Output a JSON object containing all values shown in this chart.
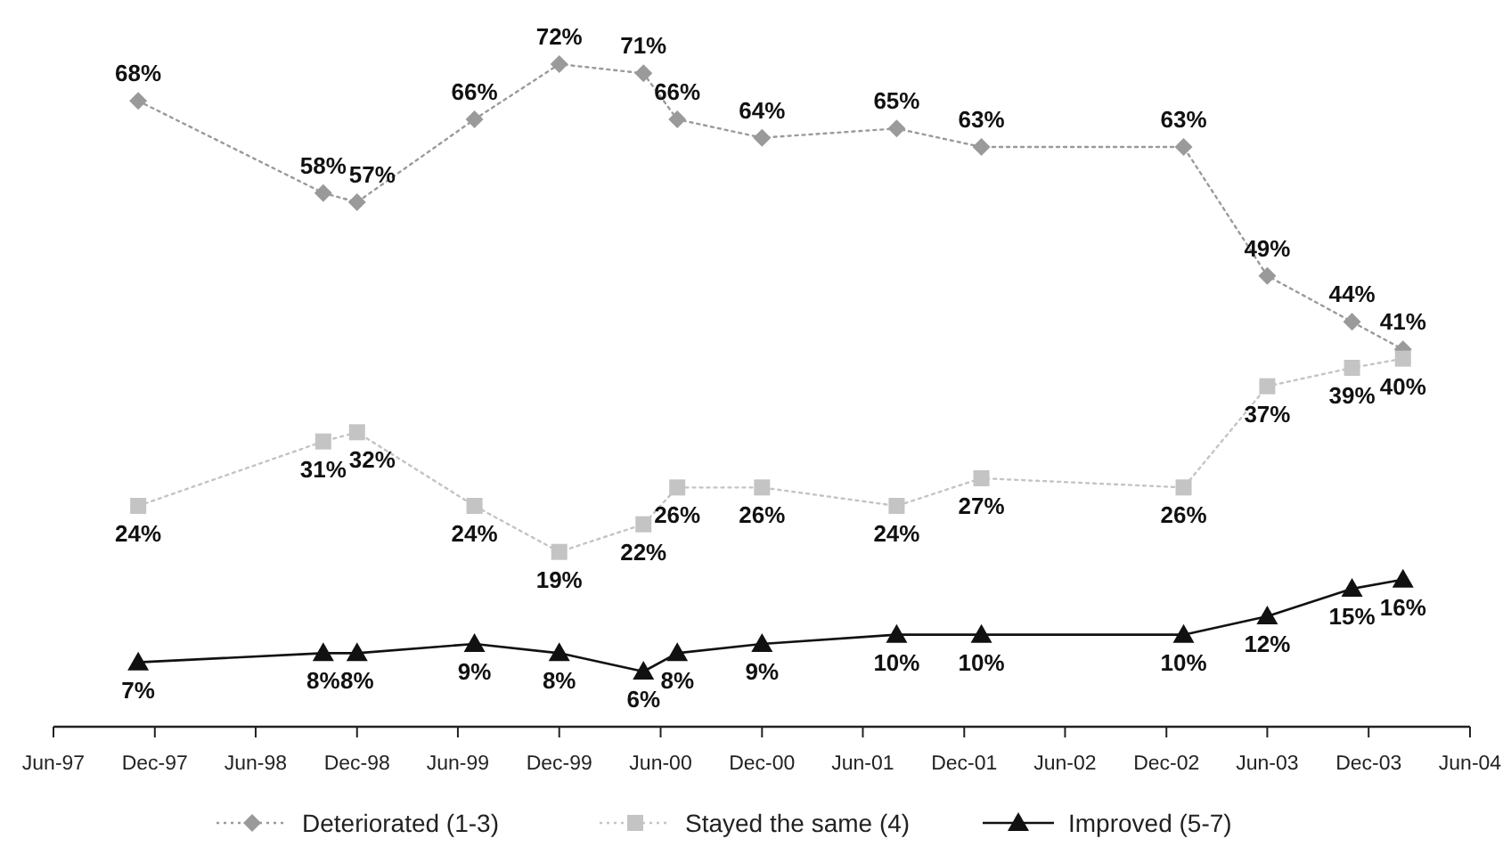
{
  "chart_data": {
    "type": "line",
    "x": [
      "1997-11",
      "1998-10",
      "1998-12",
      "1999-07",
      "1999-12",
      "2000-05",
      "2000-07",
      "2000-12",
      "2001-08",
      "2002-01",
      "2003-01",
      "2003-06",
      "2003-11",
      "2004-02"
    ],
    "series": [
      {
        "name": "Deteriorated (1-3)",
        "color": "#9a9a9a",
        "marker": "diamond",
        "line_style": "dotted",
        "values": [
          68,
          58,
          57,
          66,
          72,
          71,
          66,
          64,
          65,
          63,
          63,
          49,
          44,
          41
        ],
        "value_labels": [
          "68%",
          "58%",
          "57%",
          "66%",
          "72%",
          "71%",
          "66%",
          "64%",
          "65%",
          "63%",
          "63%",
          "49%",
          "44%",
          "41%"
        ]
      },
      {
        "name": "Stayed the same (4)",
        "color": "#c4c4c4",
        "marker": "square",
        "line_style": "dotted",
        "values": [
          24,
          31,
          32,
          24,
          19,
          22,
          26,
          26,
          24,
          27,
          26,
          37,
          39,
          40
        ],
        "value_labels": [
          "24%",
          "31%",
          "32%",
          "24%",
          "19%",
          "22%",
          "26%",
          "26%",
          "24%",
          "27%",
          "26%",
          "37%",
          "39%",
          "40%"
        ]
      },
      {
        "name": "Improved (5-7)",
        "color": "#111111",
        "marker": "triangle",
        "line_style": "solid",
        "values": [
          7,
          8,
          8,
          9,
          8,
          6,
          8,
          9,
          10,
          10,
          10,
          12,
          15,
          16
        ],
        "value_labels": [
          "7%",
          "8%",
          "8%",
          "9%",
          "8%",
          "6%",
          "8%",
          "9%",
          "10%",
          "10%",
          "10%",
          "12%",
          "15%",
          "16%"
        ]
      }
    ],
    "xlim": [
      "1997-06",
      "2004-06"
    ],
    "xticks": [
      {
        "value": "1997-06",
        "label": "Jun-97"
      },
      {
        "value": "1997-12",
        "label": "Dec-97"
      },
      {
        "value": "1998-06",
        "label": "Jun-98"
      },
      {
        "value": "1998-12",
        "label": "Dec-98"
      },
      {
        "value": "1999-06",
        "label": "Jun-99"
      },
      {
        "value": "1999-12",
        "label": "Dec-99"
      },
      {
        "value": "2000-06",
        "label": "Jun-00"
      },
      {
        "value": "2000-12",
        "label": "Dec-00"
      },
      {
        "value": "2001-06",
        "label": "Jun-01"
      },
      {
        "value": "2001-12",
        "label": "Dec-01"
      },
      {
        "value": "2002-06",
        "label": "Jun-02"
      },
      {
        "value": "2002-12",
        "label": "Dec-02"
      },
      {
        "value": "2003-06",
        "label": "Jun-03"
      },
      {
        "value": "2003-12",
        "label": "Dec-03"
      },
      {
        "value": "2004-06",
        "label": "Jun-04"
      }
    ],
    "tick_labels": "x",
    "grid": false,
    "legend": "bottom"
  }
}
